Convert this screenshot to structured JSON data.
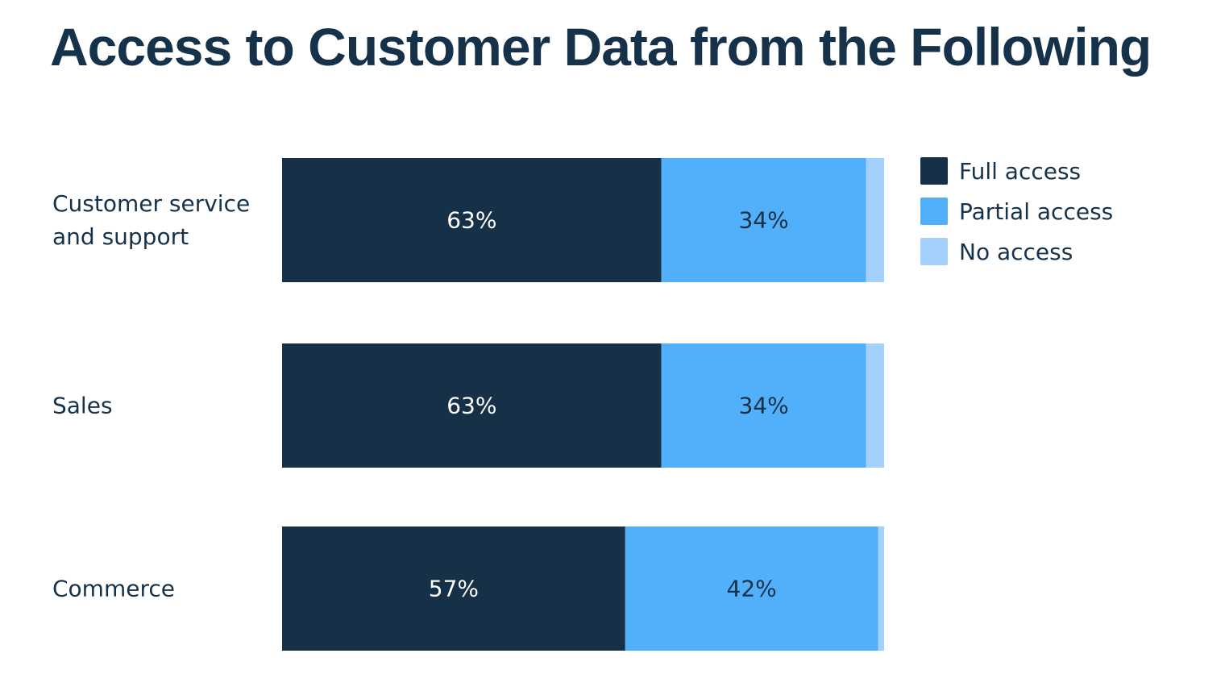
{
  "chart_data": {
    "type": "bar",
    "orientation": "horizontal",
    "stacked": true,
    "title": "Access to Customer Data from the Following",
    "categories": [
      "Customer service and support",
      "Sales",
      "Commerce"
    ],
    "category_lines": [
      [
        "Customer service",
        "and support"
      ],
      [
        "Sales"
      ],
      [
        "Commerce"
      ]
    ],
    "series": [
      {
        "name": "Full access",
        "color": "#163147",
        "label_color": "#ffffff",
        "values": [
          63,
          63,
          57
        ],
        "labels": [
          "63%",
          "63%",
          "57%"
        ]
      },
      {
        "name": "Partial access",
        "color": "#51b0f9",
        "label_color": "#16324a",
        "values": [
          34,
          34,
          42
        ],
        "labels": [
          "34%",
          "34%",
          "42%"
        ]
      },
      {
        "name": "No access",
        "color": "#a4d0fc",
        "label_color": "#16324a",
        "values": [
          3,
          3,
          1
        ],
        "labels": [
          "",
          "",
          ""
        ]
      }
    ],
    "xlim": [
      0,
      100
    ],
    "grid": false,
    "legend_position": "top-right"
  }
}
